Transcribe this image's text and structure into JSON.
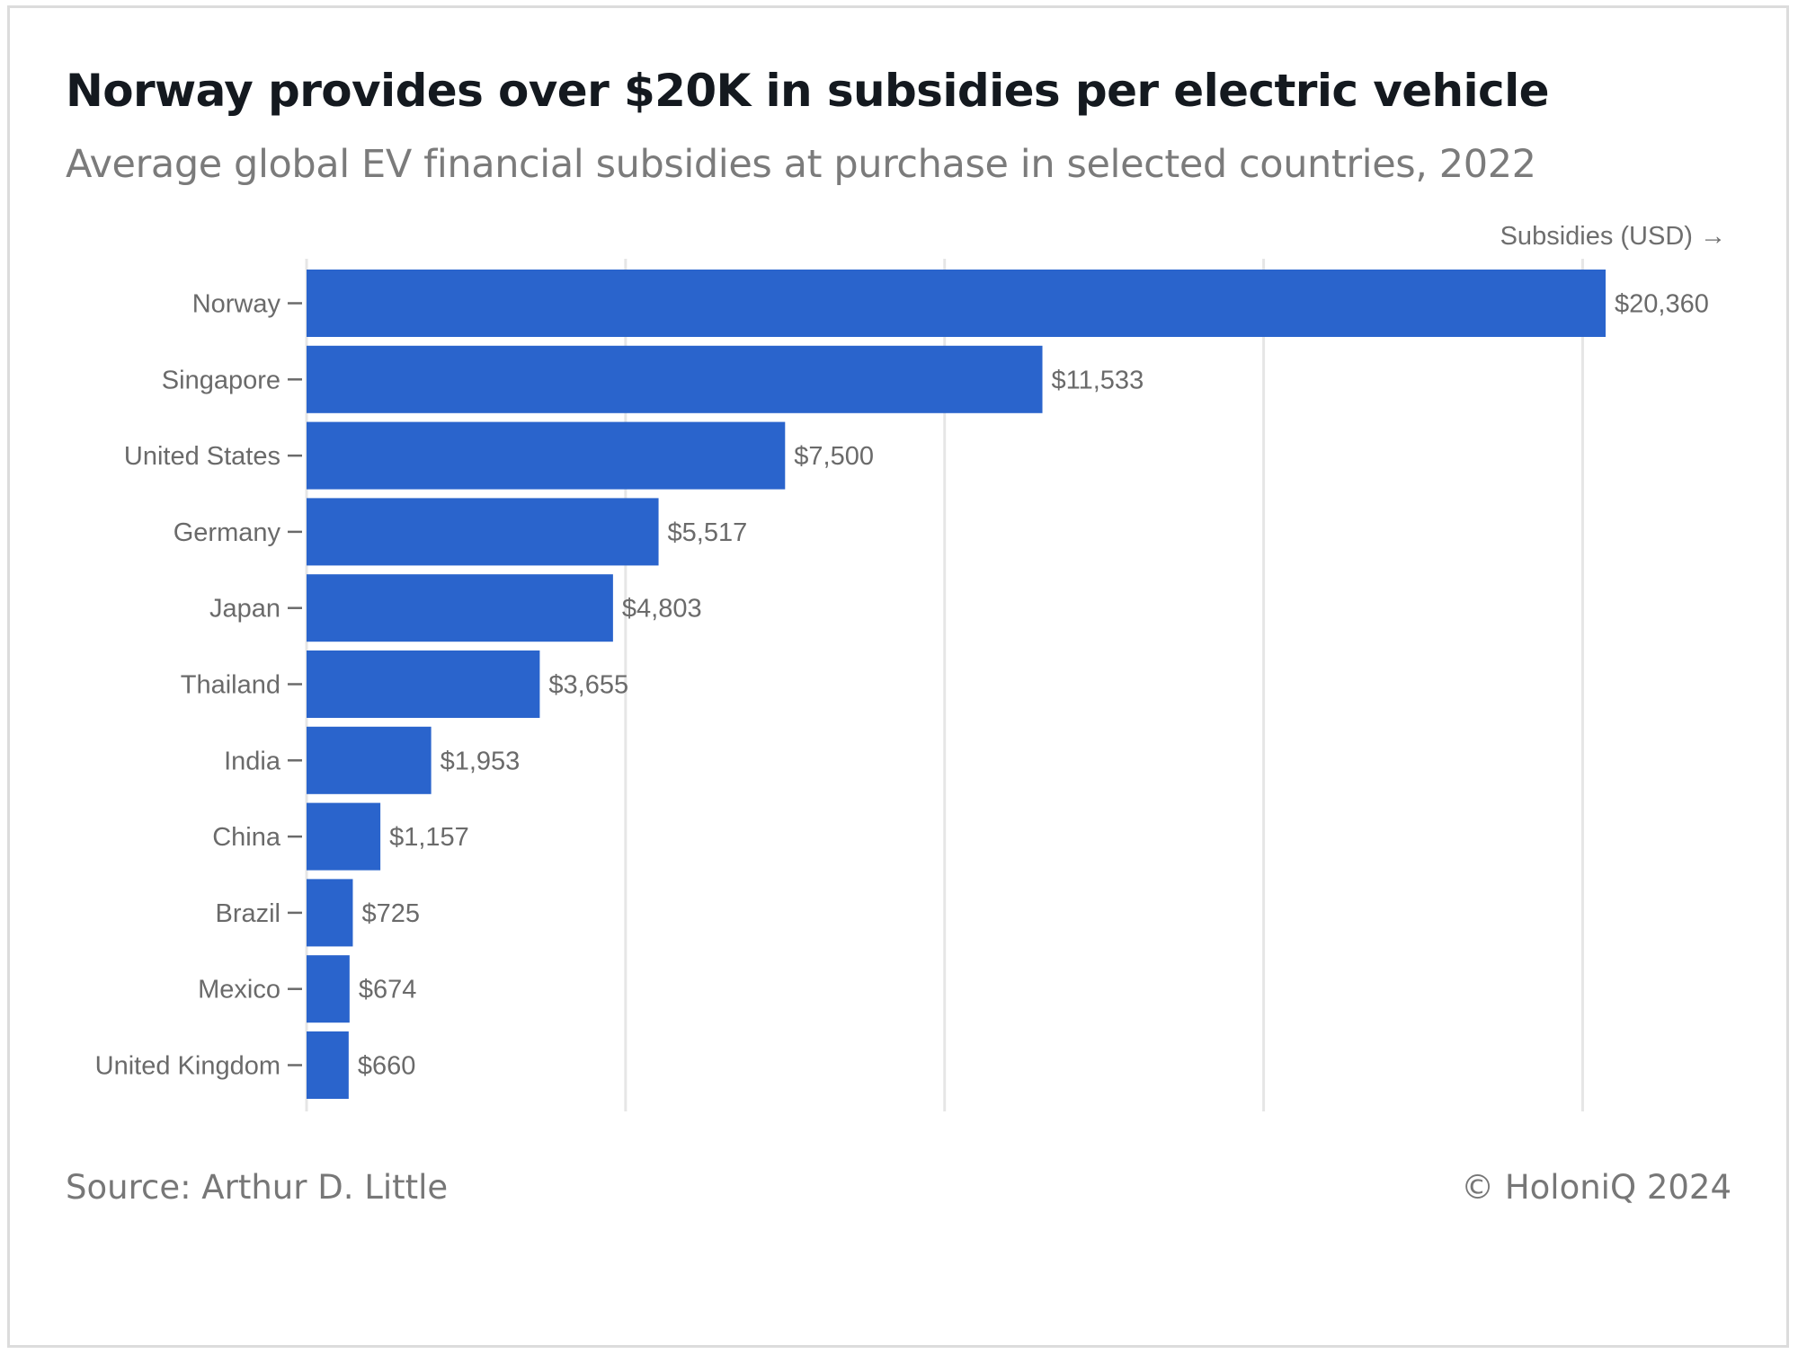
{
  "header": {
    "title": "Norway provides over $20K in subsidies per electric vehicle",
    "subtitle": "Average global EV financial subsidies at purchase in selected countries, 2022"
  },
  "footer": {
    "source": "Source: Arthur D. Little",
    "copyright": "© HoloniQ 2024"
  },
  "colors": {
    "bar": "#2a64cc",
    "grid": "#e6e6e6",
    "text": "#6a6a6a"
  },
  "chart_data": {
    "type": "bar",
    "orientation": "horizontal",
    "title": "Norway provides over $20K in subsidies per electric vehicle",
    "subtitle": "Average global EV financial subsidies at purchase in selected countries, 2022",
    "xlabel": "Subsidies (USD) →",
    "ylabel": "",
    "categories": [
      "Norway",
      "Singapore",
      "United States",
      "Germany",
      "Japan",
      "Thailand",
      "India",
      "China",
      "Brazil",
      "Mexico",
      "United Kingdom"
    ],
    "values": [
      20360,
      11533,
      7500,
      5517,
      4803,
      3655,
      1953,
      1157,
      725,
      674,
      660
    ],
    "value_labels": [
      "$20,360",
      "$11,533",
      "$7,500",
      "$5,517",
      "$4,803",
      "$3,655",
      "$1,953",
      "$1,157",
      "$725",
      "$674",
      "$660"
    ],
    "xlim": [
      0,
      20360
    ],
    "gridlines_x": [
      5000,
      10000,
      15000,
      20000
    ],
    "grid": true,
    "legend": "none"
  }
}
